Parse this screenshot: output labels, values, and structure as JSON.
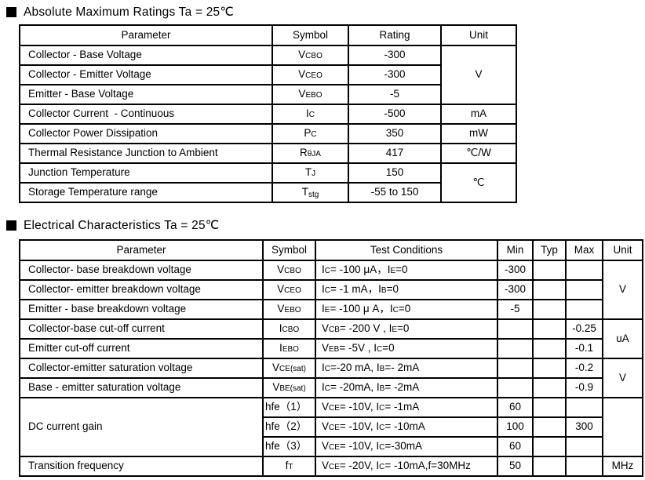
{
  "titles": {
    "t1": "Absolute Maximum Ratings Ta = 25℃",
    "t2": "Electrical Characteristics Ta = 25℃"
  },
  "amr": {
    "headers": [
      "Parameter",
      "Symbol",
      "Rating",
      "Unit"
    ],
    "rows": [
      {
        "param": "Collector - Base Voltage",
        "sym": [
          [
            "V",
            ""
          ],
          [
            "CBO",
            "sub"
          ]
        ],
        "rating": "-300",
        "unit": "V"
      },
      {
        "param": "Collector - Emitter Voltage",
        "sym": [
          [
            "V",
            ""
          ],
          [
            "CEO",
            "sub"
          ]
        ],
        "rating": "-300"
      },
      {
        "param": "Emitter - Base Voltage",
        "sym": [
          [
            "V",
            ""
          ],
          [
            "EBO",
            "sub"
          ]
        ],
        "rating": "-5"
      },
      {
        "param": "Collector Current  - Continuous",
        "sym": [
          [
            "I",
            ""
          ],
          [
            "C",
            "sub"
          ]
        ],
        "rating": "-500",
        "unit": "mA"
      },
      {
        "param": "Collector Power Dissipation",
        "sym": [
          [
            "P",
            ""
          ],
          [
            "C",
            "sub"
          ]
        ],
        "rating": "350",
        "unit": "mW"
      },
      {
        "param": "Thermal Resistance Junction to Ambient",
        "sym": [
          [
            "R",
            ""
          ],
          [
            "θJA",
            "sub"
          ]
        ],
        "rating": "417",
        "unit": "℃/W"
      },
      {
        "param": "Junction Temperature",
        "sym": [
          [
            "T",
            ""
          ],
          [
            "J",
            "sub"
          ]
        ],
        "rating": "150",
        "unit": "℃"
      },
      {
        "param": "Storage Temperature range",
        "sym": [
          [
            "T",
            ""
          ],
          [
            "stg",
            "sub low"
          ]
        ],
        "rating": "-55 to 150"
      }
    ]
  },
  "ec": {
    "headers": [
      "Parameter",
      "Symbol",
      "Test Conditions",
      "Min",
      "Typ",
      "Max",
      "Unit"
    ],
    "rows": [
      {
        "param": "Collector- base breakdown voltage",
        "sym": [
          [
            "V",
            ""
          ],
          [
            "CBO",
            "sub"
          ]
        ],
        "cond": [
          [
            "I",
            ""
          ],
          [
            "C",
            "sub"
          ],
          [
            "= -100 μA，",
            ""
          ],
          [
            "I",
            ""
          ],
          [
            "E",
            "sub"
          ],
          [
            "=0",
            ""
          ]
        ],
        "min": "-300",
        "typ": "",
        "max": "",
        "unit": "V"
      },
      {
        "param": "Collector- emitter breakdown voltage",
        "sym": [
          [
            "V",
            ""
          ],
          [
            "CEO",
            "sub"
          ]
        ],
        "cond": [
          [
            "I",
            ""
          ],
          [
            "C",
            "sub"
          ],
          [
            "= -1 mA，",
            ""
          ],
          [
            "I",
            ""
          ],
          [
            "B",
            "sub"
          ],
          [
            "=0",
            ""
          ]
        ],
        "min": "-300",
        "typ": "",
        "max": ""
      },
      {
        "param": "Emitter - base breakdown voltage",
        "sym": [
          [
            "V",
            ""
          ],
          [
            "EBO",
            "sub"
          ]
        ],
        "cond": [
          [
            "I",
            ""
          ],
          [
            "E",
            "sub"
          ],
          [
            "= -100 μ A，",
            ""
          ],
          [
            "I",
            ""
          ],
          [
            "C",
            "sub"
          ],
          [
            "=0",
            ""
          ]
        ],
        "min": "-5",
        "typ": "",
        "max": ""
      },
      {
        "param": "Collector-base cut-off current",
        "sym": [
          [
            "I",
            ""
          ],
          [
            "CBO",
            "sub"
          ]
        ],
        "cond": [
          [
            "V",
            ""
          ],
          [
            "CB",
            "sub"
          ],
          [
            "= -200 V , ",
            ""
          ],
          [
            "I",
            ""
          ],
          [
            "E",
            "sub"
          ],
          [
            "=0",
            ""
          ]
        ],
        "min": "",
        "typ": "",
        "max": "-0.25",
        "unit": "uA"
      },
      {
        "param": "Emitter cut-off current",
        "sym": [
          [
            "I",
            ""
          ],
          [
            "EBO",
            "sub"
          ]
        ],
        "cond": [
          [
            "V",
            ""
          ],
          [
            "EB",
            "sub"
          ],
          [
            "= -5V , ",
            ""
          ],
          [
            "I",
            ""
          ],
          [
            "C",
            "sub"
          ],
          [
            "=0",
            ""
          ]
        ],
        "min": "",
        "typ": "",
        "max": "-0.1"
      },
      {
        "param": "Collector-emitter saturation voltage",
        "sym": [
          [
            "V",
            ""
          ],
          [
            "CE(sat)",
            "sub"
          ]
        ],
        "cond": [
          [
            "I",
            ""
          ],
          [
            "C",
            "sub"
          ],
          [
            "=-20 mA, ",
            ""
          ],
          [
            "I",
            ""
          ],
          [
            "B",
            "sub"
          ],
          [
            "=- 2mA",
            ""
          ]
        ],
        "min": "",
        "typ": "",
        "max": "-0.2",
        "unit": "V"
      },
      {
        "param": "Base - emitter saturation voltage",
        "sym": [
          [
            "V",
            ""
          ],
          [
            "BE(sat)",
            "sub"
          ]
        ],
        "cond": [
          [
            "I",
            ""
          ],
          [
            "C",
            "sub"
          ],
          [
            "= -20mA, ",
            ""
          ],
          [
            "I",
            ""
          ],
          [
            "B",
            "sub"
          ],
          [
            "= -2mA",
            ""
          ]
        ],
        "min": "",
        "typ": "",
        "max": "-0.9"
      },
      {
        "param": "DC current gain",
        "sym": [
          [
            "hfe（1）",
            ""
          ]
        ],
        "cond": [
          [
            "V",
            ""
          ],
          [
            "CE",
            "sub"
          ],
          [
            "= -10V, ",
            ""
          ],
          [
            "I",
            ""
          ],
          [
            "C",
            "sub"
          ],
          [
            "= -1mA",
            ""
          ]
        ],
        "min": "60",
        "typ": "",
        "max": "",
        "unit": ""
      },
      {
        "sym": [
          [
            "hfe（2）",
            ""
          ]
        ],
        "cond": [
          [
            "V",
            ""
          ],
          [
            "CE",
            "sub"
          ],
          [
            "= -10V, ",
            ""
          ],
          [
            "I",
            ""
          ],
          [
            "C",
            "sub"
          ],
          [
            "= -10mA",
            ""
          ]
        ],
        "min": "100",
        "typ": "",
        "max": "300"
      },
      {
        "sym": [
          [
            "hfe（3）",
            ""
          ]
        ],
        "cond": [
          [
            "V",
            ""
          ],
          [
            "CE",
            "sub"
          ],
          [
            "= -10V, ",
            ""
          ],
          [
            "I",
            ""
          ],
          [
            "C",
            "sub"
          ],
          [
            "=-30mA",
            ""
          ]
        ],
        "min": "60",
        "typ": "",
        "max": ""
      },
      {
        "param": "Transition frequency",
        "sym": [
          [
            "f",
            ""
          ],
          [
            "T",
            "sub"
          ]
        ],
        "cond": [
          [
            "V",
            ""
          ],
          [
            "CE",
            "sub"
          ],
          [
            "= -20V, ",
            ""
          ],
          [
            "I",
            ""
          ],
          [
            "C",
            "sub"
          ],
          [
            "= -10mA,f=30MHz",
            ""
          ]
        ],
        "min": "50",
        "typ": "",
        "max": "",
        "unit": "MHz"
      }
    ]
  }
}
